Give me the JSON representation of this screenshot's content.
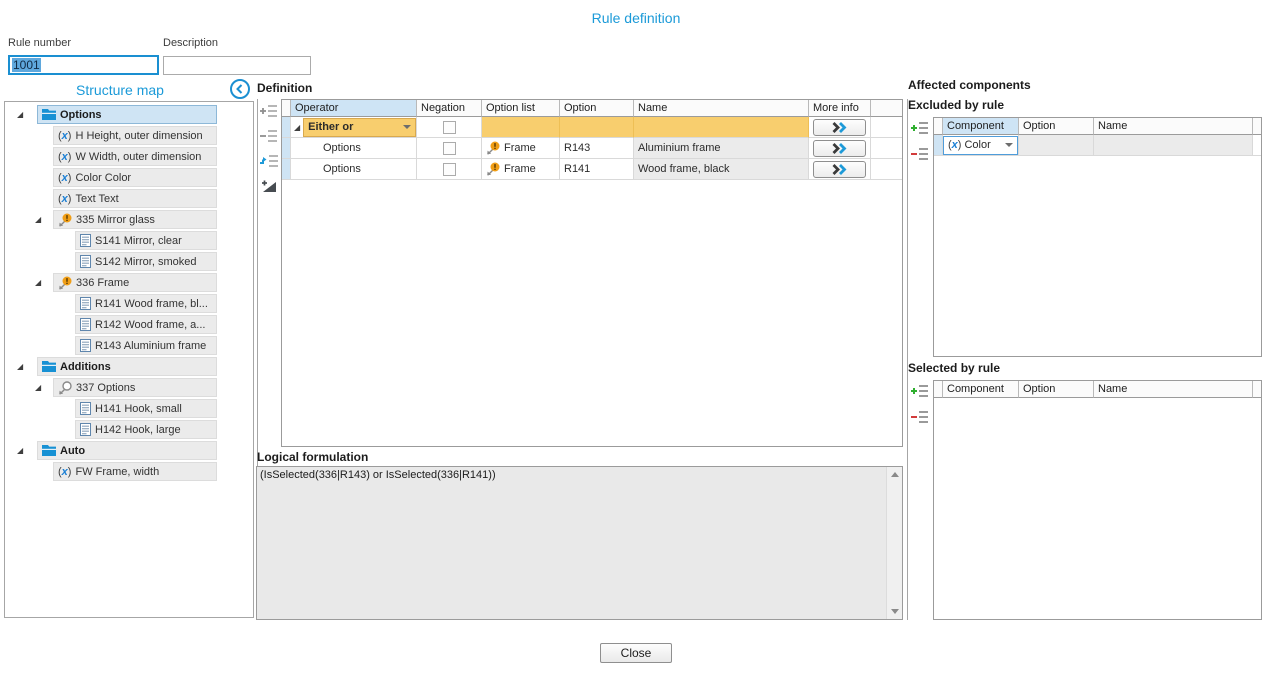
{
  "window": {
    "title": "Rule definition",
    "close_label": "Close"
  },
  "fields": {
    "rule_number": {
      "label": "Rule number",
      "value": "1001"
    },
    "description": {
      "label": "Description",
      "value": ""
    }
  },
  "structure_map": {
    "title": "Structure map",
    "back_icon": "chevron-left-circle-icon",
    "items": [
      {
        "label": "Options",
        "level": 0,
        "icon": "folder-icon",
        "bold": true,
        "selected": true,
        "expander": true
      },
      {
        "label": "H Height, outer dimension",
        "level": 1,
        "icon": "variable-icon"
      },
      {
        "label": "W Width, outer dimension",
        "level": 1,
        "icon": "variable-icon"
      },
      {
        "label": "Color Color",
        "level": 1,
        "icon": "variable-icon"
      },
      {
        "label": "Text Text",
        "level": 1,
        "icon": "variable-icon"
      },
      {
        "label": "335 Mirror glass",
        "level": 1,
        "icon": "option-list-alert-icon",
        "expander": true
      },
      {
        "label": "S141 Mirror, clear",
        "level": 2,
        "icon": "document-icon"
      },
      {
        "label": "S142 Mirror, smoked",
        "level": 2,
        "icon": "document-icon"
      },
      {
        "label": "336 Frame",
        "level": 1,
        "icon": "option-list-alert-icon",
        "expander": true
      },
      {
        "label": "R141 Wood frame, bl...",
        "level": 2,
        "icon": "document-icon"
      },
      {
        "label": "R142 Wood frame, a...",
        "level": 2,
        "icon": "document-icon"
      },
      {
        "label": "R143 Aluminium frame",
        "level": 2,
        "icon": "document-icon"
      },
      {
        "label": "Additions",
        "level": 0,
        "icon": "folder-icon",
        "bold": true,
        "expander": true
      },
      {
        "label": "337 Options",
        "level": 1,
        "icon": "option-list-icon",
        "expander": true
      },
      {
        "label": "H141 Hook, small",
        "level": 2,
        "icon": "document-icon"
      },
      {
        "label": "H142 Hook, large",
        "level": 2,
        "icon": "document-icon"
      },
      {
        "label": "Auto",
        "level": 0,
        "icon": "folder-icon",
        "bold": true,
        "expander": true
      },
      {
        "label": "FW Frame, width",
        "level": 1,
        "icon": "variable-icon"
      }
    ]
  },
  "definition": {
    "label": "Definition",
    "toolbar": [
      "add-row-icon",
      "remove-row-icon",
      "move-row-icon",
      "add-operator-icon"
    ],
    "columns": [
      "Operator",
      "Negation",
      "Option list",
      "Option",
      "Name",
      "More info"
    ],
    "rows": [
      {
        "type": "operator",
        "operator": "Either or",
        "negation": false,
        "option_list": "",
        "option": "",
        "name": "",
        "expander": true
      },
      {
        "type": "condition",
        "operator": "Options",
        "negation": false,
        "option_list": "Frame",
        "option_list_icon": "option-list-alert-icon",
        "option": "R143",
        "name": "Aluminium frame"
      },
      {
        "type": "condition",
        "operator": "Options",
        "negation": false,
        "option_list": "Frame",
        "option_list_icon": "option-list-alert-icon",
        "option": "R141",
        "name": "Wood frame, black"
      }
    ],
    "more_info_icon": "chevrons-right-icon"
  },
  "logical_formulation": {
    "label": "Logical formulation",
    "text": "(IsSelected(336|R143) or IsSelected(336|R141))"
  },
  "affected": {
    "title": "Affected components",
    "excluded": {
      "title": "Excluded by rule",
      "toolbar": [
        "add-item-icon",
        "remove-item-icon"
      ],
      "columns": [
        "Component",
        "Option",
        "Name"
      ],
      "rows": [
        {
          "component": "Color",
          "component_icon": "variable-icon",
          "option": "",
          "name": ""
        }
      ]
    },
    "selected": {
      "title": "Selected by rule",
      "toolbar": [
        "add-item-icon",
        "remove-item-icon"
      ],
      "columns": [
        "Component",
        "Option",
        "Name"
      ],
      "rows": []
    }
  },
  "colors": {
    "accent_blue": "#1b9ad8",
    "header_blue": "#cee4f5",
    "highlight_yellow": "#f8ce6e",
    "row_gray": "#ebebeb",
    "selected_row_blue": "#cfe4f4",
    "add_green": "#2faf2f",
    "remove_red": "#d23b3b",
    "chevron_dark": "#3a3a3a"
  }
}
